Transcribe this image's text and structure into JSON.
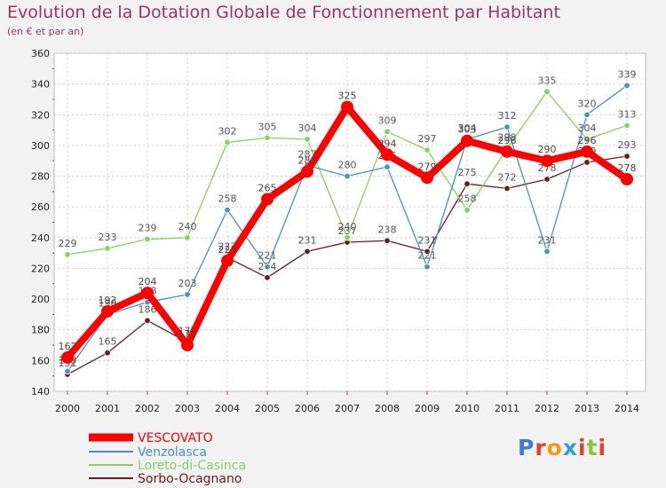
{
  "title": "Evolution de la Dotation Globale de Fonctionnement par Habitant",
  "subtitle": "(en € et par an)",
  "logo": {
    "text": "Proxiti",
    "letter_colors": [
      "#3a7bd5",
      "#e0412c",
      "#f39c12",
      "#2a9fd6",
      "#e0412c",
      "#8cc63f",
      "#e0412c"
    ]
  },
  "chart_data": {
    "type": "line",
    "title": "Evolution de la Dotation Globale de Fonctionnement par Habitant",
    "subtitle": "(en € et par an)",
    "x": [
      2000,
      2001,
      2002,
      2003,
      2004,
      2005,
      2006,
      2007,
      2008,
      2009,
      2010,
      2011,
      2012,
      2013,
      2014
    ],
    "ylim": [
      140,
      360
    ],
    "yticks": [
      140,
      160,
      180,
      200,
      220,
      240,
      260,
      280,
      300,
      320,
      340,
      360
    ],
    "grid": true,
    "legend_position": "bottom-left",
    "series": [
      {
        "name": "VESCOVATO",
        "color": "#ff0000",
        "values": [
          162,
          192,
          204,
          170,
          225,
          265,
          283,
          325,
          294,
          279,
          303,
          296,
          290,
          296,
          278
        ]
      },
      {
        "name": "Venzolasca",
        "color": "#4a90c8",
        "values": [
          153,
          190,
          198,
          203,
          258,
          221,
          287,
          280,
          286,
          221,
          304,
          312,
          231,
          320,
          339
        ]
      },
      {
        "name": "Loreto-di-Casinca",
        "color": "#88d060",
        "values": [
          229,
          233,
          239,
          240,
          302,
          305,
          304,
          240,
          309,
          297,
          258,
          298,
          335,
          304,
          313
        ]
      },
      {
        "name": "Sorbo-Ocagnano",
        "color": "#6e1a1a",
        "values": [
          151,
          165,
          186,
          172,
          227,
          214,
          231,
          237,
          238,
          231,
          275,
          272,
          278,
          289,
          293
        ]
      }
    ]
  }
}
